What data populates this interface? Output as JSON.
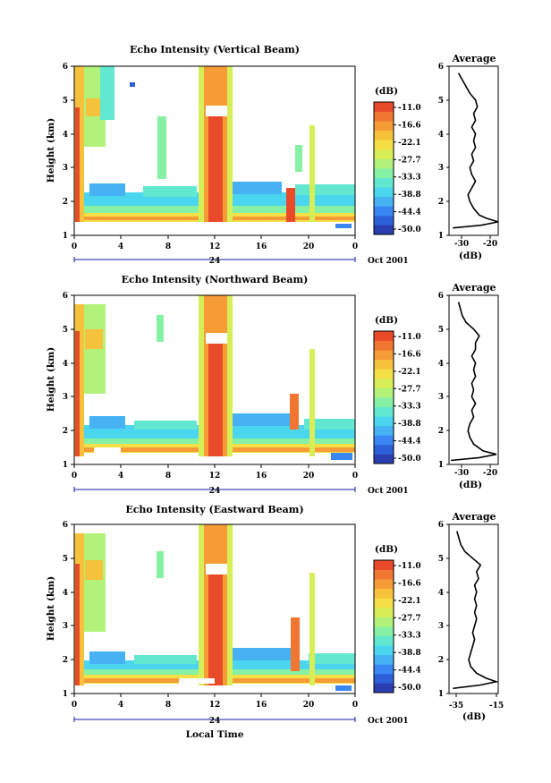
{
  "figure": {
    "x_axis_label": "Local Time",
    "date_label": "Oct 2001",
    "day_label": "24",
    "colorbar_unit": "(dB)",
    "colorbar_ticks": [
      "-11.0",
      "-16.6",
      "-22.1",
      "-27.7",
      "-33.3",
      "-38.8",
      "-44.4",
      "-50.0"
    ],
    "colorbar_colors": [
      "#2a3eb0",
      "#2d5fd8",
      "#3a86f2",
      "#46b2f4",
      "#4ad6ee",
      "#62e8d0",
      "#86f0a4",
      "#b2f27a",
      "#d8ee56",
      "#f4e046",
      "#f6c23c",
      "#f59c36",
      "#f07632",
      "#e94a2a"
    ],
    "colors": {
      "line": "#000000",
      "axis_blue": "#1a1aa8"
    }
  },
  "chart_data": [
    {
      "type": "heatmap",
      "title": "Echo Intensity (Vertical Beam)",
      "xlabel": "",
      "ylabel": "Height (km)",
      "xlim": [
        0,
        24
      ],
      "ylim": [
        1,
        6
      ],
      "x_ticks": [
        "0",
        "4",
        "8",
        "12",
        "16",
        "20",
        "0"
      ],
      "y_ticks": [
        "1",
        "2",
        "3",
        "4",
        "5",
        "6"
      ],
      "value_range_db": [
        -50.0,
        -11.0
      ],
      "features": [
        {
          "label": "ground clutter layer",
          "height_km": [
            1.35,
            1.75
          ],
          "time_h": [
            0,
            24
          ]
        },
        {
          "label": "strong echo column",
          "time_h": [
            11.2,
            13.3
          ],
          "height_km": [
            1.3,
            6
          ]
        },
        {
          "label": "early morning echoes",
          "time_h": [
            0,
            1.5
          ],
          "height_km": [
            1.3,
            6
          ]
        }
      ],
      "profile": {
        "title": "Average",
        "xlabel": "(dB)",
        "x_ticks": [
          "-30",
          "-20"
        ],
        "xlim": [
          -38,
          -12
        ],
        "heights_km": [
          1.22,
          1.3,
          1.4,
          1.5,
          1.6,
          1.8,
          2.0,
          2.2,
          2.4,
          2.6,
          2.8,
          3.0,
          3.2,
          3.4,
          3.6,
          3.8,
          4.0,
          4.2,
          4.4,
          4.6,
          4.8,
          5.0,
          5.2,
          5.4,
          5.6,
          5.8
        ],
        "values_db": [
          -36,
          -21,
          -12,
          -18,
          -22,
          -25,
          -27,
          -28,
          -26,
          -24,
          -26,
          -27,
          -25,
          -26,
          -24,
          -25,
          -24,
          -26,
          -24,
          -25,
          -23,
          -24,
          -27,
          -29,
          -31,
          -33
        ]
      }
    },
    {
      "type": "heatmap",
      "title": "Echo Intensity (Northward Beam)",
      "xlabel": "",
      "ylabel": "Height (km)",
      "xlim": [
        0,
        24
      ],
      "ylim": [
        1,
        6
      ],
      "x_ticks": [
        "0",
        "4",
        "8",
        "12",
        "16",
        "20",
        "0"
      ],
      "y_ticks": [
        "1",
        "2",
        "3",
        "4",
        "5",
        "6"
      ],
      "value_range_db": [
        -50.0,
        -11.0
      ],
      "features": [
        {
          "label": "ground clutter layer",
          "height_km": [
            1.3,
            1.6
          ],
          "time_h": [
            0,
            24
          ]
        },
        {
          "label": "strong echo column",
          "time_h": [
            11.2,
            13.3
          ],
          "height_km": [
            1.3,
            6
          ]
        }
      ],
      "profile": {
        "title": "Average",
        "xlabel": "(dB)",
        "x_ticks": [
          "-30",
          "-20"
        ],
        "xlim": [
          -38,
          -12
        ],
        "heights_km": [
          1.12,
          1.2,
          1.3,
          1.4,
          1.6,
          1.8,
          2.0,
          2.2,
          2.4,
          2.6,
          2.8,
          3.0,
          3.2,
          3.4,
          3.6,
          3.8,
          4.0,
          4.2,
          4.4,
          4.6,
          4.8,
          5.0,
          5.2,
          5.4,
          5.6,
          5.8
        ],
        "values_db": [
          -37,
          -22,
          -13,
          -20,
          -25,
          -27,
          -28,
          -27,
          -25,
          -26,
          -24,
          -26,
          -25,
          -26,
          -24,
          -25,
          -24,
          -26,
          -24,
          -24,
          -22,
          -25,
          -29,
          -31,
          -32,
          -33
        ]
      }
    },
    {
      "type": "heatmap",
      "title": "Echo Intensity (Eastward Beam)",
      "xlabel": "Local Time",
      "ylabel": "Height (km)",
      "xlim": [
        0,
        24
      ],
      "ylim": [
        1,
        6
      ],
      "x_ticks": [
        "0",
        "4",
        "8",
        "12",
        "16",
        "20",
        "0"
      ],
      "y_ticks": [
        "1",
        "2",
        "3",
        "4",
        "5",
        "6"
      ],
      "value_range_db": [
        -50.0,
        -11.0
      ],
      "features": [
        {
          "label": "ground clutter layer",
          "height_km": [
            1.3,
            1.55
          ],
          "time_h": [
            0,
            24
          ]
        },
        {
          "label": "strong echo column",
          "time_h": [
            11.2,
            13.3
          ],
          "height_km": [
            1.3,
            6
          ]
        }
      ],
      "profile": {
        "title": "Average",
        "xlabel": "(dB)",
        "x_ticks": [
          "-35",
          "-15"
        ],
        "xlim": [
          -38,
          -13
        ],
        "heights_km": [
          1.15,
          1.25,
          1.35,
          1.45,
          1.6,
          1.8,
          2.0,
          2.2,
          2.4,
          2.6,
          2.8,
          3.0,
          3.2,
          3.4,
          3.6,
          3.8,
          4.0,
          4.2,
          4.4,
          4.6,
          4.8,
          5.0,
          5.2,
          5.4,
          5.6,
          5.8
        ],
        "values_db": [
          -36,
          -22,
          -14,
          -19,
          -24,
          -27,
          -28,
          -27,
          -26,
          -25,
          -26,
          -25,
          -24,
          -25,
          -24,
          -25,
          -24,
          -25,
          -23,
          -24,
          -22,
          -26,
          -30,
          -32,
          -33,
          -34
        ]
      }
    }
  ]
}
